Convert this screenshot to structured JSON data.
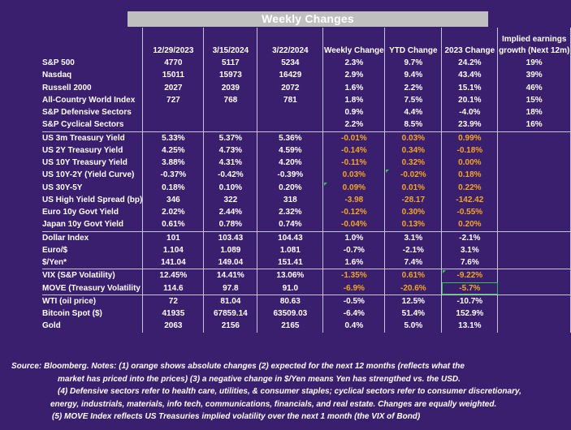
{
  "title": "Weekly Changes",
  "headers": [
    "12/29/2023",
    "3/15/2024",
    "3/22/2024",
    "Weekly Change",
    "YTD Change",
    "2023 Change",
    "Implied earnings growth (Next 12m)"
  ],
  "rows": [
    {
      "label": "S&P 500",
      "c1": "4770",
      "c2": "5117",
      "c3": "5234",
      "wk": "2.3%",
      "ytd": "9.7%",
      "y23": "24.2%",
      "eg": "19%"
    },
    {
      "label": "Nasdaq",
      "c1": "15011",
      "c2": "15973",
      "c3": "16429",
      "wk": "2.9%",
      "ytd": "9.4%",
      "y23": "43.4%",
      "eg": "39%"
    },
    {
      "label": "Russell 2000",
      "c1": "2027",
      "c2": "2039",
      "c3": "2072",
      "wk": "1.6%",
      "ytd": "2.2%",
      "y23": "15.1%",
      "eg": "46%"
    },
    {
      "label": "All-Country World Index",
      "c1": "727",
      "c2": "768",
      "c3": "781",
      "wk": "1.8%",
      "ytd": "7.5%",
      "y23": "20.1%",
      "eg": "15%"
    },
    {
      "label": "S&P Defensive Sectors",
      "c1": "",
      "c2": "",
      "c3": "",
      "wk": "0.9%",
      "ytd": "4.4%",
      "y23": "-4.0%",
      "eg": "18%"
    },
    {
      "label": "S&P Cyclical Sectors",
      "c1": "",
      "c2": "",
      "c3": "",
      "wk": "2.2%",
      "ytd": "8.5%",
      "y23": "23.9%",
      "eg": "16%"
    },
    {
      "label": "US 3m Treasury Yield",
      "c1": "5.33%",
      "c2": "5.37%",
      "c3": "5.36%",
      "wk": "-0.01%",
      "ytd": "0.03%",
      "y23": "0.99%",
      "eg": ""
    },
    {
      "label": "US 2Y Treasury Yield",
      "c1": "4.25%",
      "c2": "4.73%",
      "c3": "4.59%",
      "wk": "-0.14%",
      "ytd": "0.34%",
      "y23": "-0.18%",
      "eg": ""
    },
    {
      "label": "US 10Y Treasury Yield",
      "c1": "3.88%",
      "c2": "4.31%",
      "c3": "4.20%",
      "wk": "-0.11%",
      "ytd": "0.32%",
      "y23": "0.00%",
      "eg": ""
    },
    {
      "label": "US 10Y-2Y (Yield Curve)",
      "c1": "-0.37%",
      "c2": "-0.42%",
      "c3": "-0.39%",
      "wk": "0.03%",
      "ytd": "-0.02%",
      "y23": "0.18%",
      "eg": ""
    },
    {
      "label": "US 30Y-5Y",
      "c1": "0.18%",
      "c2": "0.10%",
      "c3": "0.20%",
      "wk": "0.09%",
      "ytd": "0.01%",
      "y23": "0.22%",
      "eg": ""
    },
    {
      "label": "US High Yield Spread (bp)",
      "c1": "346",
      "c2": "322",
      "c3": "318",
      "wk": "-3.98",
      "ytd": "-28.17",
      "y23": "-142.42",
      "eg": ""
    },
    {
      "label": "Euro 10y Govt Yield",
      "c1": "2.02%",
      "c2": "2.44%",
      "c3": "2.32%",
      "wk": "-0.12%",
      "ytd": "0.30%",
      "y23": "-0.55%",
      "eg": ""
    },
    {
      "label": "Japan 10y Govt Yield",
      "c1": "0.61%",
      "c2": "0.78%",
      "c3": "0.74%",
      "wk": "-0.04%",
      "ytd": "0.13%",
      "y23": "0.20%",
      "eg": ""
    },
    {
      "label": "Dollar Index",
      "c1": "101",
      "c2": "103.43",
      "c3": "104.43",
      "wk": "1.0%",
      "ytd": "3.1%",
      "y23": "-2.1%",
      "eg": ""
    },
    {
      "label": "Euro/$",
      "c1": "1.104",
      "c2": "1.089",
      "c3": "1.081",
      "wk": "-0.7%",
      "ytd": "-2.1%",
      "y23": "3.1%",
      "eg": ""
    },
    {
      "label": "$/Yen*",
      "c1": "141.04",
      "c2": "149.04",
      "c3": "151.41",
      "wk": "1.6%",
      "ytd": "7.4%",
      "y23": "7.6%",
      "eg": ""
    },
    {
      "label": "VIX (S&P Volatility)",
      "c1": "12.45%",
      "c2": "14.41%",
      "c3": "13.06%",
      "wk": "-1.35%",
      "ytd": "0.61%",
      "y23": "-9.22%",
      "eg": ""
    },
    {
      "label": "MOVE (Treasury Volatility",
      "c1": "114.6",
      "c2": "97.8",
      "c3": "91.0",
      "wk": "-6.9%",
      "ytd": "-20.6%",
      "y23": "-5.7%",
      "eg": ""
    },
    {
      "label": "WTI (oil price)",
      "c1": "72",
      "c2": "81.04",
      "c3": "80.63",
      "wk": "-0.5%",
      "ytd": "12.5%",
      "y23": "-10.7%",
      "eg": ""
    },
    {
      "label": "Bitcoin Spot ($)",
      "c1": "41935",
      "c2": "67859.14",
      "c3": "63509.03",
      "wk": "-6.4%",
      "ytd": "51.4%",
      "y23": "152.9%",
      "eg": ""
    },
    {
      "label": "Gold",
      "c1": "2063",
      "c2": "2156",
      "c3": "2165",
      "wk": "0.4%",
      "ytd": "5.0%",
      "y23": "13.1%",
      "eg": ""
    }
  ],
  "notes": [
    "Source: Bloomberg. Notes: (1) orange shows absolute changes (2) expected for the next 12 months (reflects what the",
    "market has priced into the prices) (3) a negative change in $/Yen means Yen has strengthed vs. the USD.",
    "(4) Defensive sectors refer to health care, utilities, & consumer staples; cyclical sectors refer to consumer discretionary,",
    "energy, industrials, materials, info tech, communications, financials, and real estate. Changes are equally weighted.",
    "(5) MOVE Index reflects US Treasuries implied volatility over the next 1 month (the VIX of Bond)"
  ],
  "colors": {
    "background": "#3a1f6e",
    "orange": "#f5a623",
    "title_bar": "#bfbfbf",
    "selection": "#2dc653"
  }
}
